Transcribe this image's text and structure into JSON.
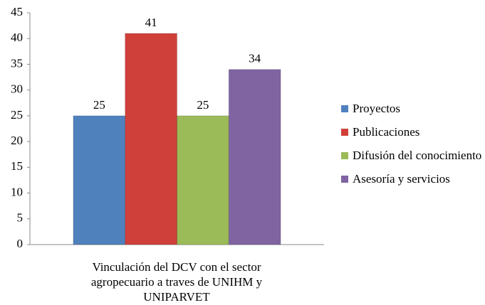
{
  "chart_data": {
    "type": "bar",
    "categories": [
      "Vinculación del DCV con el sector agropecuario a traves de UNIHM y UNIPARVET"
    ],
    "series": [
      {
        "name": "Proyectos",
        "color": "#4f81bd",
        "values": [
          25
        ]
      },
      {
        "name": "Publicaciones",
        "color": "#d0403b",
        "values": [
          41
        ]
      },
      {
        "name": "Difusión del conocimiento",
        "color": "#9bbb59",
        "values": [
          25
        ]
      },
      {
        "name": "Asesoría y servicios",
        "color": "#8064a2",
        "values": [
          34
        ]
      }
    ],
    "ylim": [
      0,
      45
    ],
    "yticks": [
      0,
      5,
      10,
      15,
      20,
      25,
      30,
      35,
      40,
      45
    ],
    "legend": "right",
    "grid": false
  }
}
